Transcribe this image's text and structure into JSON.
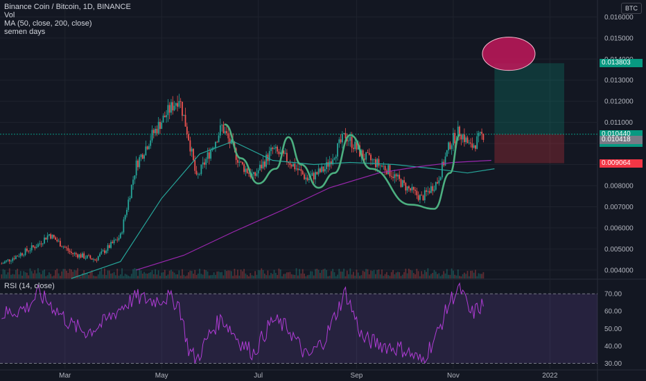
{
  "header": {
    "title": "Binance Coin / Bitcoin, 1D, BINANCE",
    "vol_label": "Vol",
    "ma_label": "MA (50, close, 200, close)",
    "note_label": "semen days",
    "rsi_label": "RSI (14, close)",
    "currency": "BTC"
  },
  "price_tags": [
    {
      "text": "0.013803",
      "color": "#089981"
    },
    {
      "text": "0.010440",
      "color": "#089981"
    },
    {
      "text": "04:50:55",
      "color": "#089981"
    },
    {
      "text": "0.010418",
      "color": "#787b86"
    },
    {
      "text": "0.009064",
      "color": "#f23645"
    }
  ],
  "chart_data": [
    {
      "type": "candlestick",
      "title": "Binance Coin / Bitcoin, 1D, BINANCE",
      "x_ticks": [
        "Mar",
        "May",
        "Jul",
        "Sep",
        "Nov",
        "2022"
      ],
      "y_ticks": [
        "0.004000",
        "0.005000",
        "0.006000",
        "0.007000",
        "0.008000",
        "0.009000",
        "0.010000",
        "0.011000",
        "0.012000",
        "0.013000",
        "0.014000",
        "0.015000",
        "0.016000"
      ],
      "ylim": [
        0.0036,
        0.0168
      ],
      "last_price": 0.01044,
      "close_path": [
        {
          "date": "2021-01-20",
          "close": 0.0043
        },
        {
          "date": "2021-02-12",
          "close": 0.0052
        },
        {
          "date": "2021-02-19",
          "close": 0.0057
        },
        {
          "date": "2021-03-05",
          "close": 0.0048
        },
        {
          "date": "2021-03-20",
          "close": 0.0045
        },
        {
          "date": "2021-04-05",
          "close": 0.0056
        },
        {
          "date": "2021-04-15",
          "close": 0.009
        },
        {
          "date": "2021-04-25",
          "close": 0.0104
        },
        {
          "date": "2021-05-05",
          "close": 0.0115
        },
        {
          "date": "2021-05-12",
          "close": 0.0122
        },
        {
          "date": "2021-05-18",
          "close": 0.0103
        },
        {
          "date": "2021-05-23",
          "close": 0.0083
        },
        {
          "date": "2021-06-01",
          "close": 0.0097
        },
        {
          "date": "2021-06-08",
          "close": 0.0108
        },
        {
          "date": "2021-06-20",
          "close": 0.009
        },
        {
          "date": "2021-06-28",
          "close": 0.0084
        },
        {
          "date": "2021-07-10",
          "close": 0.0097
        },
        {
          "date": "2021-07-20",
          "close": 0.0092
        },
        {
          "date": "2021-08-01",
          "close": 0.0083
        },
        {
          "date": "2021-08-12",
          "close": 0.0088
        },
        {
          "date": "2021-08-25",
          "close": 0.0104
        },
        {
          "date": "2021-09-05",
          "close": 0.0094
        },
        {
          "date": "2021-09-20",
          "close": 0.0088
        },
        {
          "date": "2021-10-01",
          "close": 0.008
        },
        {
          "date": "2021-10-12",
          "close": 0.0074
        },
        {
          "date": "2021-10-22",
          "close": 0.0082
        },
        {
          "date": "2021-10-30",
          "close": 0.01
        },
        {
          "date": "2021-11-05",
          "close": 0.0106
        },
        {
          "date": "2021-11-12",
          "close": 0.0098
        },
        {
          "date": "2021-11-20",
          "close": 0.01044
        }
      ],
      "ma50": [
        {
          "date": "2021-03-05",
          "value": 0.0036
        },
        {
          "date": "2021-04-05",
          "value": 0.0044
        },
        {
          "date": "2021-05-01",
          "value": 0.0074
        },
        {
          "date": "2021-05-25",
          "value": 0.0095
        },
        {
          "date": "2021-06-15",
          "value": 0.0101
        },
        {
          "date": "2021-07-10",
          "value": 0.0092
        },
        {
          "date": "2021-08-05",
          "value": 0.009
        },
        {
          "date": "2021-08-28",
          "value": 0.0091
        },
        {
          "date": "2021-09-25",
          "value": 0.009
        },
        {
          "date": "2021-10-20",
          "value": 0.0088
        },
        {
          "date": "2021-11-10",
          "value": 0.0086
        },
        {
          "date": "2021-11-27",
          "value": 0.0088
        }
      ],
      "ma200": [
        {
          "date": "2021-04-15",
          "value": 0.004
        },
        {
          "date": "2021-05-15",
          "value": 0.0047
        },
        {
          "date": "2021-06-15",
          "value": 0.0058
        },
        {
          "date": "2021-07-15",
          "value": 0.0068
        },
        {
          "date": "2021-08-15",
          "value": 0.0079
        },
        {
          "date": "2021-09-15",
          "value": 0.0086
        },
        {
          "date": "2021-10-10",
          "value": 0.0089
        },
        {
          "date": "2021-11-01",
          "value": 0.0091
        },
        {
          "date": "2021-11-25",
          "value": 0.0092
        }
      ],
      "position": {
        "entry": 0.01044,
        "target": 0.013803,
        "stop": 0.009064,
        "start_date": "2021-11-27",
        "end_date": "2022-01-10"
      },
      "pattern_outline": [
        {
          "date": "2021-06-10",
          "value": 0.0109
        },
        {
          "date": "2021-06-20",
          "value": 0.0093
        },
        {
          "date": "2021-07-01",
          "value": 0.0081
        },
        {
          "date": "2021-07-12",
          "value": 0.0088
        },
        {
          "date": "2021-07-20",
          "value": 0.0103
        },
        {
          "date": "2021-07-28",
          "value": 0.009
        },
        {
          "date": "2021-08-08",
          "value": 0.0079
        },
        {
          "date": "2021-08-18",
          "value": 0.0086
        },
        {
          "date": "2021-08-28",
          "value": 0.0104
        },
        {
          "date": "2021-09-10",
          "value": 0.0088
        },
        {
          "date": "2021-10-05",
          "value": 0.0071
        },
        {
          "date": "2021-10-20",
          "value": 0.0069
        },
        {
          "date": "2021-10-30",
          "value": 0.0086
        },
        {
          "date": "2021-11-05",
          "value": 0.0104
        }
      ],
      "target_ellipse": {
        "date": "2021-12-06",
        "value": 0.01425
      }
    },
    {
      "type": "line",
      "title": "RSI (14, close)",
      "y_ticks": [
        "30.00",
        "40.00",
        "50.00",
        "60.00",
        "70.00"
      ],
      "ylim": [
        27,
        78
      ],
      "bands": [
        30,
        70
      ],
      "rsi_path": [
        {
          "date": "2021-01-20",
          "value": 58
        },
        {
          "date": "2021-02-05",
          "value": 62
        },
        {
          "date": "2021-02-12",
          "value": 70
        },
        {
          "date": "2021-02-20",
          "value": 64
        },
        {
          "date": "2021-03-05",
          "value": 52
        },
        {
          "date": "2021-03-15",
          "value": 48
        },
        {
          "date": "2021-03-25",
          "value": 53
        },
        {
          "date": "2021-04-05",
          "value": 62
        },
        {
          "date": "2021-04-15",
          "value": 68
        },
        {
          "date": "2021-04-25",
          "value": 66
        },
        {
          "date": "2021-05-05",
          "value": 68
        },
        {
          "date": "2021-05-12",
          "value": 64
        },
        {
          "date": "2021-05-18",
          "value": 38
        },
        {
          "date": "2021-05-23",
          "value": 32
        },
        {
          "date": "2021-06-01",
          "value": 48
        },
        {
          "date": "2021-06-08",
          "value": 56
        },
        {
          "date": "2021-06-20",
          "value": 42
        },
        {
          "date": "2021-06-28",
          "value": 36
        },
        {
          "date": "2021-07-10",
          "value": 55
        },
        {
          "date": "2021-07-20",
          "value": 50
        },
        {
          "date": "2021-08-01",
          "value": 33
        },
        {
          "date": "2021-08-12",
          "value": 44
        },
        {
          "date": "2021-08-25",
          "value": 71
        },
        {
          "date": "2021-09-05",
          "value": 44
        },
        {
          "date": "2021-09-20",
          "value": 40
        },
        {
          "date": "2021-10-01",
          "value": 38
        },
        {
          "date": "2021-10-12",
          "value": 31
        },
        {
          "date": "2021-10-22",
          "value": 47
        },
        {
          "date": "2021-10-30",
          "value": 66
        },
        {
          "date": "2021-11-05",
          "value": 74
        },
        {
          "date": "2021-11-12",
          "value": 58
        },
        {
          "date": "2021-11-20",
          "value": 64
        }
      ]
    }
  ]
}
